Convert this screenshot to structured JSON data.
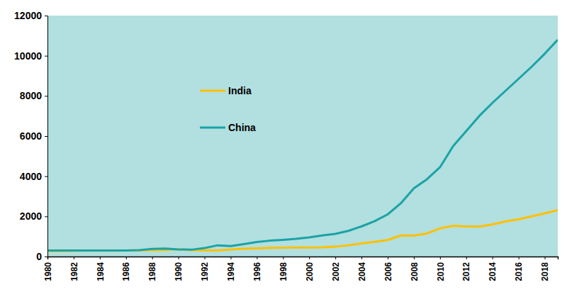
{
  "chart_data": {
    "type": "line",
    "x": [
      1980,
      1981,
      1982,
      1983,
      1984,
      1985,
      1986,
      1987,
      1988,
      1989,
      1990,
      1991,
      1992,
      1993,
      1994,
      1995,
      1996,
      1997,
      1998,
      1999,
      2000,
      2001,
      2002,
      2003,
      2004,
      2005,
      2006,
      2007,
      2008,
      2009,
      2010,
      2011,
      2012,
      2013,
      2014,
      2015,
      2016,
      2017,
      2018,
      2019
    ],
    "series": [
      {
        "name": "India",
        "color": "#ffc000",
        "values": [
          270,
          275,
          285,
          290,
          290,
          295,
          300,
          305,
          320,
          330,
          370,
          320,
          310,
          300,
          350,
          390,
          410,
          430,
          440,
          450,
          450,
          460,
          490,
          560,
          650,
          730,
          820,
          1050,
          1040,
          1150,
          1400,
          1530,
          1500,
          1490,
          1600,
          1750,
          1850,
          2000,
          2150,
          2300
        ]
      },
      {
        "name": "China",
        "color": "#1aa3a6",
        "values": [
          300,
          300,
          300,
          300,
          300,
          300,
          300,
          320,
          380,
          400,
          350,
          340,
          420,
          560,
          520,
          620,
          720,
          790,
          830,
          880,
          950,
          1050,
          1130,
          1280,
          1500,
          1760,
          2100,
          2650,
          3400,
          3850,
          4450,
          5500,
          6250,
          7000,
          7650,
          8250,
          8850,
          9450,
          10100,
          10800
        ]
      }
    ],
    "xlim": [
      1980,
      2019
    ],
    "xticks": [
      1980,
      1982,
      1984,
      1986,
      1988,
      1990,
      1992,
      1994,
      1996,
      1998,
      2000,
      2002,
      2004,
      2006,
      2008,
      2010,
      2012,
      2014,
      2016,
      2018
    ],
    "ylim": [
      0,
      12000
    ],
    "yticks": [
      0,
      2000,
      4000,
      6000,
      8000,
      10000,
      12000
    ],
    "grid": false,
    "legend": "upper left"
  }
}
